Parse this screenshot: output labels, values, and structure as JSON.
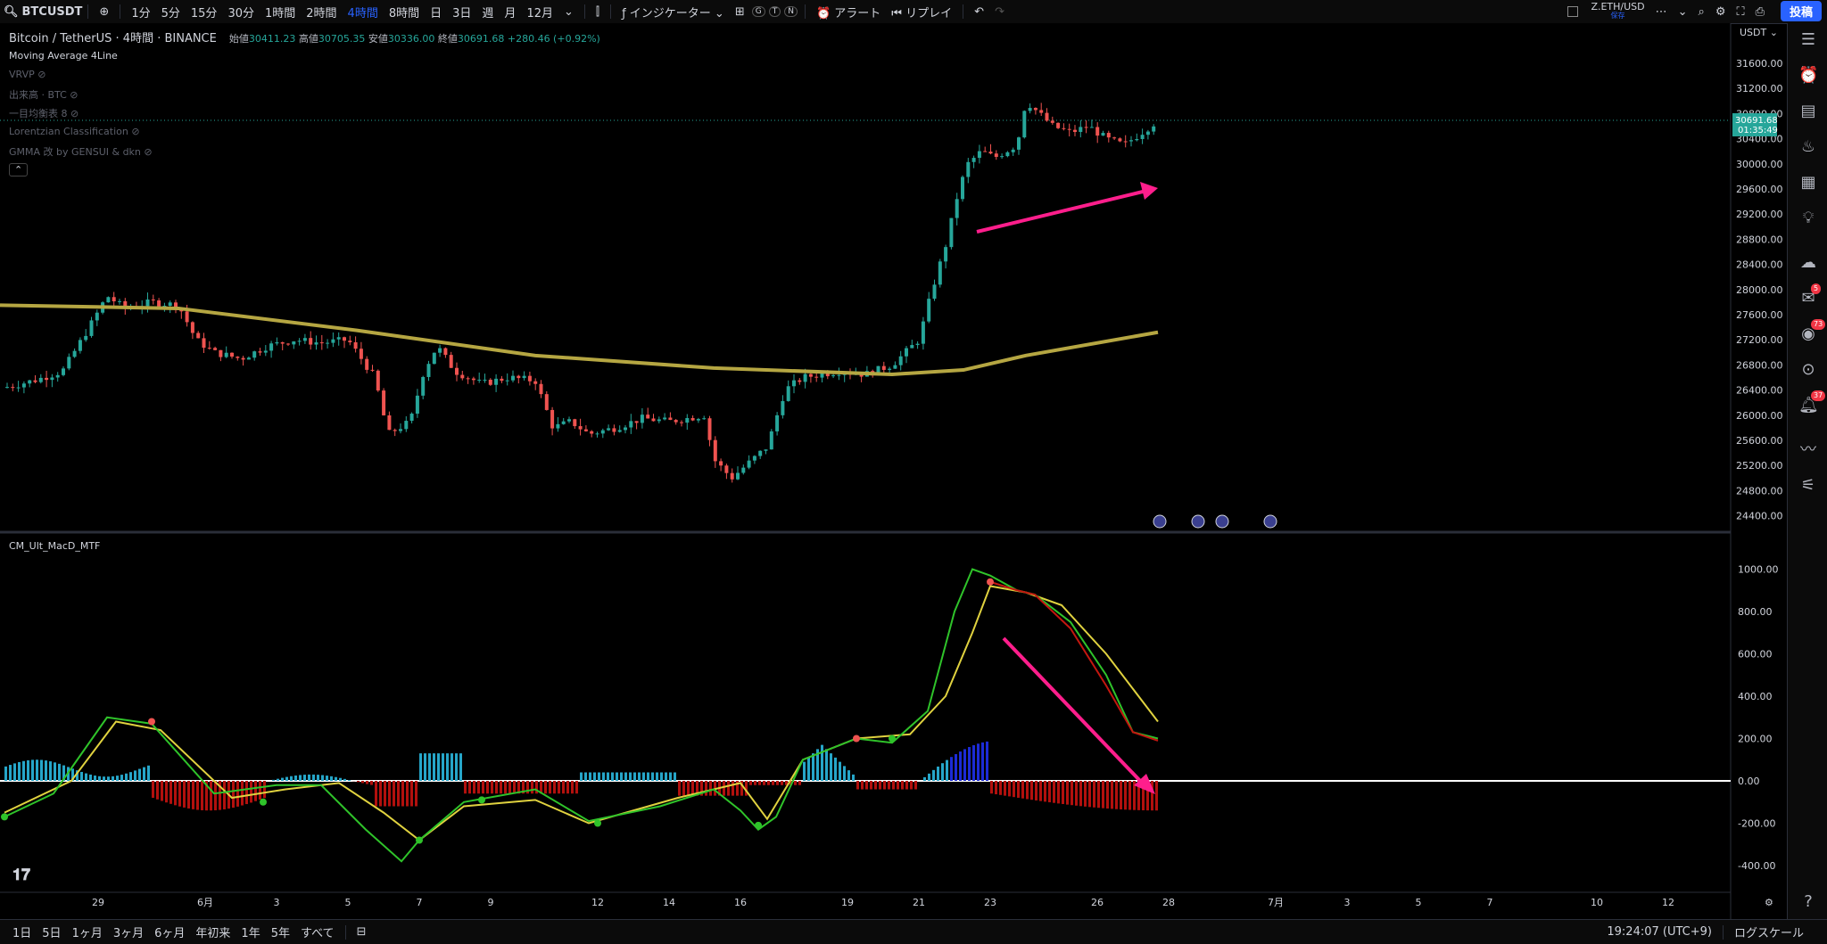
{
  "toolbar": {
    "symbol": "BTCUSDT",
    "intervals": [
      "1分",
      "5分",
      "15分",
      "30分",
      "1時間",
      "2時間",
      "4時間",
      "8時間",
      "日",
      "3日",
      "週",
      "月",
      "12月"
    ],
    "active_interval": "4時間",
    "indicators_label": "インジケーター",
    "alert_label": "アラート",
    "replay_label": "リプレイ",
    "compare_symbol": "Z.ETH/USD",
    "compare_sub": "保存",
    "post_label": "投稿"
  },
  "legend": {
    "title": "Bitcoin / TetherUS · 4時間 · BINANCE",
    "open_label": "始値",
    "open": "30411.23",
    "high_label": "高値",
    "high": "30705.35",
    "low_label": "安値",
    "low": "30336.00",
    "close_label": "終値",
    "close": "30691.68",
    "change": "+280.46 (+0.92%)",
    "indicators": [
      "Moving Average 4Line",
      "VRVP",
      "出来高 · BTC",
      "一目均衡表 8",
      "Lorentzian Classification",
      "GMMA 改 by GENSUI & dkn"
    ],
    "macd_title": "CM_Ult_MacD_MTF"
  },
  "price_axis": {
    "currency": "USDT",
    "ticks": [
      "31600.00",
      "31200.00",
      "30800.00",
      "30400.00",
      "30000.00",
      "29600.00",
      "29200.00",
      "28800.00",
      "28400.00",
      "28000.00",
      "27600.00",
      "27200.00",
      "26800.00",
      "26400.00",
      "26000.00",
      "25600.00",
      "25200.00",
      "24800.00",
      "24400.00"
    ],
    "last_price": "30691.68",
    "countdown": "01:35:49"
  },
  "macd_axis": {
    "ticks": [
      "1000.00",
      "800.00",
      "600.00",
      "400.00",
      "200.00",
      "0.00",
      "-200.00",
      "-400.00"
    ]
  },
  "time_axis": {
    "ticks": [
      "29",
      "6月",
      "3",
      "5",
      "7",
      "9",
      "12",
      "14",
      "16",
      "19",
      "21",
      "23",
      "26",
      "28",
      "7月",
      "3",
      "5",
      "7",
      "10",
      "12"
    ]
  },
  "bottom": {
    "ranges": [
      "1日",
      "5日",
      "1ヶ月",
      "3ヶ月",
      "6ヶ月",
      "年初来",
      "1年",
      "5年",
      "すべて"
    ],
    "time": "19:24:07 (UTC+9)",
    "log_label": "ログスケール"
  },
  "colors": {
    "up": "#26a69a",
    "down": "#ef5350",
    "ma": "#b5a642",
    "arrow": "#ff1e8c",
    "macd_fast": "#2fc32a",
    "macd_slow": "#e0d23f",
    "macd_red": "#c4170f",
    "hist_pos": "#26a6c9",
    "hist_blue": "#1c2bd6",
    "hist_neg": "#b2100d",
    "accent": "#2962ff"
  },
  "icons": [
    "chart-bars-icon",
    "indicators-icon",
    "templates-icon",
    "alert-icon",
    "replay-icon",
    "undo-icon",
    "redo-icon",
    "search-icon",
    "settings-icon",
    "fullscreen-icon",
    "camera-icon",
    "watchlist-icon",
    "clock-icon",
    "news-icon",
    "hotlist-icon",
    "calendar-icon",
    "idea-icon",
    "community-icon",
    "chat-icon",
    "streams-icon",
    "notifications-icon",
    "help-icon"
  ],
  "right_badges": {
    "chat": "5",
    "streams": "73",
    "notifications": "37"
  }
}
